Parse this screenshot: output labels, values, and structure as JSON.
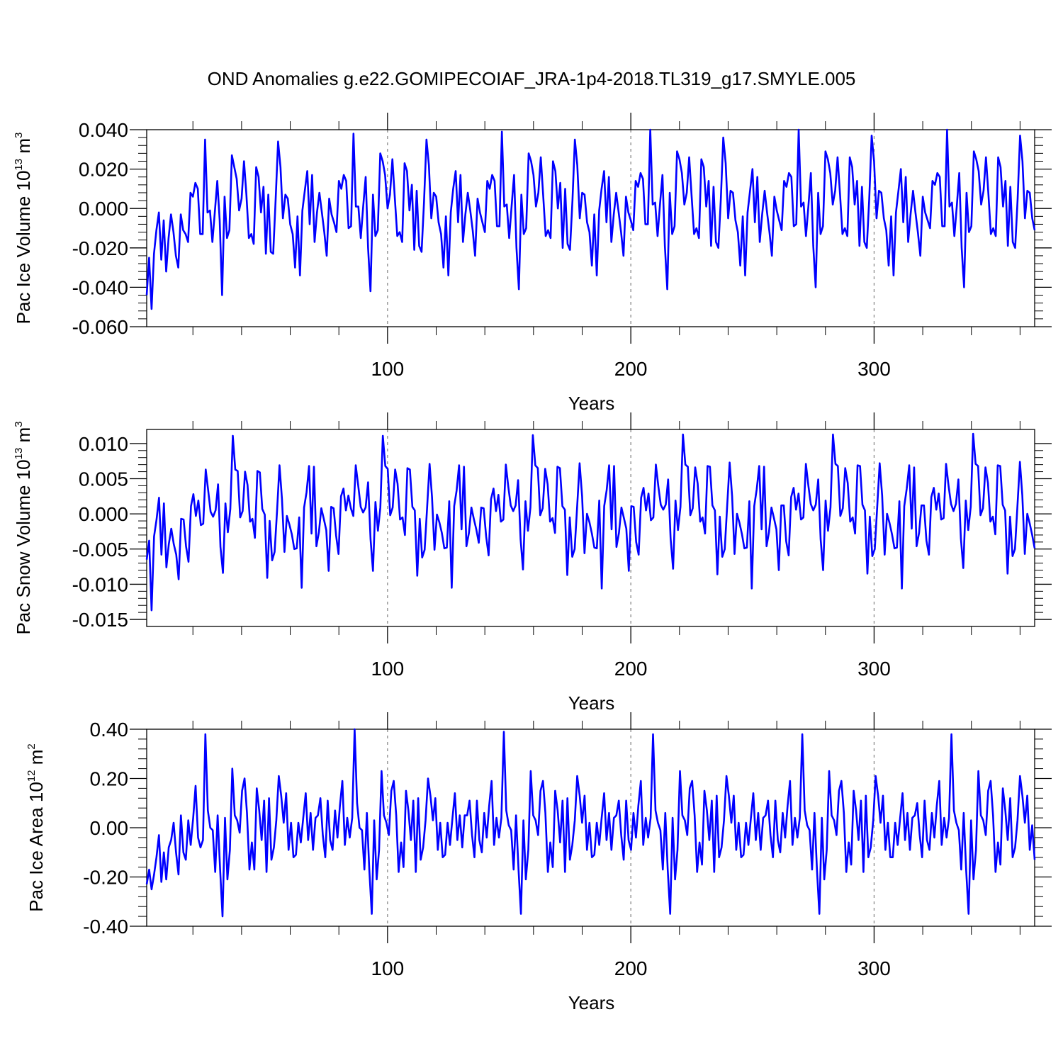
{
  "title": "OND Anomalies g.e22.GOMIPECOIAF_JRA-1p4-2018.TL319_g17.SMYLE.005",
  "colors": {
    "line": "#0000ff",
    "axis": "#000000",
    "refline": "#808080"
  },
  "chart_data": [
    {
      "type": "line",
      "ylabel": "Pac Ice Volume 10",
      "ylabel_sup": "13",
      "ylabel_unit": " m",
      "ylabel_unit_sup": "3",
      "xlabel": "Years",
      "xlim": [
        1,
        366
      ],
      "ylim": [
        -0.06,
        0.04
      ],
      "yticks": [
        -0.06,
        -0.04,
        -0.02,
        0.0,
        0.02,
        0.04
      ],
      "ytick_labels": [
        "-0.060",
        "-0.040",
        "-0.020",
        "0.000",
        "0.020",
        "0.040"
      ],
      "xticks": [
        100,
        200,
        300
      ],
      "xtick_labels": [
        "100",
        "200",
        "300"
      ],
      "reflines": [
        100,
        200,
        300
      ],
      "values": [
        -0.044,
        -0.025,
        -0.051,
        -0.023,
        -0.011,
        -0.002,
        -0.026,
        -0.006,
        -0.032,
        -0.015,
        -0.003,
        -0.012,
        -0.024,
        -0.03,
        -0.003,
        -0.011,
        -0.013,
        -0.017,
        0.008,
        0.006,
        0.013,
        0.01,
        -0.013,
        -0.013,
        0.035,
        -0.002,
        -0.001,
        -0.017,
        -0.002,
        0.014,
        -0.006,
        -0.044,
        0.006,
        -0.015,
        -0.011,
        0.027,
        0.021,
        0.015,
        -0.001,
        0.005,
        0.024,
        0.007,
        -0.015,
        -0.013,
        -0.018,
        0.021,
        0.016,
        -0.002,
        0.011,
        -0.023,
        0.007,
        -0.022,
        -0.023,
        0.004,
        0.034,
        0.021,
        -0.005,
        0.007,
        0.005,
        -0.008,
        -0.013,
        -0.03,
        -0.004,
        -0.034,
        -0.001,
        0.009,
        0.019,
        -0.008,
        0.017,
        -0.017,
        -0.002,
        0.008,
        -0.002,
        -0.012,
        -0.024,
        0.005,
        -0.003,
        -0.007,
        -0.012,
        0.014,
        0.01,
        0.017,
        0.014,
        -0.01,
        -0.009,
        0.038,
        0.001,
        0.001,
        -0.015,
        0.001,
        0.016,
        -0.02,
        -0.042,
        0.007,
        -0.014,
        -0.011,
        0.028,
        0.024,
        0.017,
        0.0,
        0.007,
        0.025,
        0.005,
        -0.014,
        -0.012,
        -0.017,
        0.023,
        0.019,
        -0.001,
        0.012,
        -0.021,
        0.009,
        -0.019,
        -0.022,
        0.003,
        0.035,
        0.022,
        -0.005,
        0.008,
        0.006,
        -0.007,
        -0.013,
        -0.03,
        -0.004,
        -0.034,
        -0.002,
        0.01,
        0.019,
        -0.007,
        0.017,
        -0.017,
        -0.003,
        0.008,
        -0.001,
        -0.011,
        -0.024,
        0.005,
        -0.002,
        -0.007,
        -0.012,
        0.014,
        0.01,
        0.017,
        0.014,
        -0.009,
        -0.009,
        0.039,
        0.001,
        0.002,
        -0.015,
        0.001,
        0.017,
        -0.02,
        -0.041,
        0.007,
        -0.013,
        -0.01,
        0.028,
        0.024,
        0.017,
        0.001,
        0.008,
        0.026,
        0.006,
        -0.014,
        -0.011,
        -0.015,
        0.024,
        0.019,
        0.0,
        0.013,
        -0.02,
        0.01,
        -0.018,
        -0.021,
        0.004,
        0.035,
        0.022,
        -0.005,
        0.008,
        0.007,
        -0.007,
        -0.012,
        -0.029,
        -0.003,
        -0.034,
        -0.001,
        0.01,
        0.019,
        -0.007,
        0.016,
        -0.017,
        -0.003,
        0.008,
        -0.002,
        -0.012,
        -0.024,
        0.006,
        -0.002,
        -0.006,
        -0.011,
        0.014,
        0.011,
        0.018,
        0.015,
        -0.008,
        -0.008,
        0.04,
        0.002,
        0.003,
        -0.014,
        0.002,
        0.017,
        -0.019,
        -0.041,
        0.008,
        -0.013,
        -0.009,
        0.029,
        0.025,
        0.018,
        0.002,
        0.008,
        0.026,
        0.006,
        -0.013,
        -0.01,
        -0.015,
        0.025,
        0.021,
        0.001,
        0.014,
        -0.019,
        0.011,
        -0.017,
        -0.02,
        0.005,
        0.036,
        0.023,
        -0.005,
        0.009,
        0.008,
        -0.006,
        -0.012,
        -0.029,
        -0.004,
        -0.034,
        -0.002,
        0.009,
        0.02,
        -0.007,
        0.016,
        -0.017,
        -0.003,
        0.009,
        -0.002,
        -0.012,
        -0.024,
        0.006,
        -0.001,
        -0.006,
        -0.011,
        0.014,
        0.011,
        0.018,
        0.016,
        -0.009,
        -0.008,
        0.04,
        0.001,
        0.003,
        -0.014,
        0.001,
        0.018,
        -0.019,
        -0.04,
        0.008,
        -0.013,
        -0.009,
        0.029,
        0.025,
        0.018,
        0.002,
        0.009,
        0.026,
        0.007,
        -0.013,
        -0.01,
        -0.014,
        0.026,
        0.021,
        0.002,
        0.014,
        -0.019,
        0.011,
        -0.017,
        -0.02,
        0.005,
        0.037,
        0.024,
        -0.005,
        0.009,
        0.008,
        -0.005,
        -0.011,
        -0.029,
        -0.004,
        -0.034,
        -0.002,
        0.009,
        0.02,
        -0.007,
        0.016,
        -0.017,
        -0.003,
        0.009,
        -0.002,
        -0.012,
        -0.024,
        0.006,
        -0.002,
        -0.006,
        -0.01,
        0.014,
        0.012,
        0.018,
        0.016,
        -0.009,
        -0.009,
        0.04,
        0.001,
        0.003,
        -0.014,
        0.001,
        0.018,
        -0.02,
        -0.04,
        0.008,
        -0.012,
        -0.009,
        0.029,
        0.025,
        0.019,
        0.002,
        0.009,
        0.026,
        0.007,
        -0.013,
        -0.01,
        -0.014,
        0.026,
        0.021,
        0.001,
        0.014,
        -0.019,
        0.011,
        -0.017,
        -0.02,
        0.005,
        0.037,
        0.024,
        -0.005,
        0.009,
        0.008,
        -0.005,
        -0.011
      ]
    },
    {
      "type": "line",
      "ylabel": "Pac Snow Volume 10",
      "ylabel_sup": "13",
      "ylabel_unit": " m",
      "ylabel_unit_sup": "3",
      "xlabel": "Years",
      "xlim": [
        1,
        366
      ],
      "ylim": [
        -0.016,
        0.012
      ],
      "yticks": [
        -0.015,
        -0.01,
        -0.005,
        0.0,
        0.005,
        0.01
      ],
      "ytick_labels": [
        "-0.015",
        "-0.010",
        "-0.005",
        "0.000",
        "0.005",
        "0.010"
      ],
      "xticks": [
        100,
        200,
        300
      ],
      "xtick_labels": [
        "100",
        "200",
        "300"
      ],
      "reflines": [
        100,
        200,
        300
      ],
      "values": [
        -0.0065,
        -0.0038,
        -0.0137,
        -0.0032,
        -0.0008,
        0.0023,
        -0.0058,
        0.0015,
        -0.0076,
        -0.0043,
        -0.0021,
        -0.0043,
        -0.0058,
        -0.0093,
        -0.0007,
        -0.0008,
        -0.0046,
        -0.0068,
        0.0011,
        0.0028,
        -0.0003,
        0.0019,
        -0.0016,
        -0.0014,
        0.0063,
        0.0033,
        0.0003,
        -0.0004,
        0.0005,
        0.0042,
        -0.0047,
        -0.0084,
        0.0015,
        -0.0026,
        0.0007,
        0.0111,
        0.0063,
        0.0061,
        -0.0005,
        0.0004,
        0.006,
        0.0041,
        -0.0011,
        -0.0007,
        -0.0034,
        0.0061,
        0.0059,
        0.0007,
        -0.0001,
        -0.0091,
        -0.001,
        -0.0066,
        -0.0054,
        0.0005,
        0.0069,
        0.0021,
        -0.0054,
        -0.0003,
        -0.0015,
        -0.0029,
        -0.005,
        -0.0049,
        -0.0005,
        -0.0105,
        0.0009,
        0.0031,
        0.0068,
        -0.0028,
        0.0067,
        -0.0046,
        -0.0026,
        0.0008,
        -0.0007,
        -0.0023,
        -0.0081,
        0.001,
        0.0008,
        -0.0031,
        -0.0057,
        0.0025,
        0.0036,
        0.0005,
        0.0026,
        0.0008,
        -0.0003,
        0.0069,
        0.004,
        0.001,
        0.0002,
        0.0009,
        0.0045,
        -0.0036,
        -0.0081,
        0.0017,
        -0.0024,
        0.0009,
        0.0111,
        0.0068,
        0.0064,
        -0.0002,
        0.0009,
        0.0063,
        0.0043,
        -0.0008,
        -0.0005,
        -0.003,
        0.0065,
        0.0063,
        0.001,
        0.0005,
        -0.0088,
        -0.0007,
        -0.0062,
        -0.0051,
        0.0009,
        0.0071,
        0.0024,
        -0.0051,
        -0.0001,
        -0.0012,
        -0.0027,
        -0.0049,
        -0.0048,
        0.0018,
        -0.0105,
        0.0011,
        0.0033,
        0.0069,
        -0.0022,
        0.0067,
        -0.0046,
        -0.0027,
        0.0009,
        -0.0007,
        -0.0022,
        -0.0041,
        0.0009,
        0.0008,
        -0.0032,
        -0.0059,
        0.0021,
        0.0036,
        0.0004,
        0.0027,
        -0.0011,
        -0.0008,
        0.007,
        0.0039,
        0.0012,
        0.0004,
        0.0012,
        0.0048,
        -0.0036,
        -0.0079,
        0.0018,
        -0.0024,
        0.0009,
        0.0112,
        0.0069,
        0.0065,
        -0.0002,
        0.0008,
        0.0064,
        0.0042,
        -0.0011,
        -0.0006,
        -0.0027,
        0.0067,
        0.0065,
        0.0011,
        0.0006,
        -0.0087,
        -0.0005,
        -0.0061,
        -0.005,
        0.001,
        0.0072,
        0.0025,
        -0.0056,
        0.0,
        -0.0012,
        -0.0028,
        -0.0048,
        -0.0049,
        0.0019,
        -0.0106,
        0.0011,
        0.0034,
        0.0069,
        -0.0022,
        0.0068,
        -0.0047,
        -0.0027,
        0.0009,
        -0.0006,
        -0.0021,
        -0.0081,
        0.0011,
        0.001,
        -0.004,
        -0.0058,
        0.0023,
        0.0037,
        0.0005,
        0.0029,
        -0.0009,
        -0.0005,
        0.007,
        0.0039,
        0.0013,
        0.0006,
        0.0013,
        0.0049,
        -0.0035,
        -0.0078,
        0.0019,
        -0.0023,
        0.001,
        0.0113,
        0.007,
        0.0067,
        -0.0002,
        0.0008,
        0.0066,
        0.0043,
        -0.0011,
        -0.0005,
        -0.0028,
        0.0068,
        0.0067,
        0.0012,
        0.0005,
        -0.0086,
        -0.0004,
        -0.0061,
        -0.005,
        0.0011,
        0.0073,
        0.0025,
        -0.0057,
        0.0,
        -0.0013,
        -0.0029,
        -0.0049,
        -0.0048,
        0.0018,
        -0.0106,
        0.0011,
        0.0035,
        0.0068,
        -0.0022,
        0.0067,
        -0.0046,
        -0.0026,
        0.0009,
        -0.0006,
        -0.0022,
        -0.008,
        0.0012,
        0.0012,
        -0.0039,
        -0.0059,
        0.0024,
        0.0037,
        0.0006,
        0.0029,
        -0.0008,
        -0.0005,
        0.0071,
        0.004,
        0.0014,
        0.0005,
        0.0013,
        0.0049,
        -0.0036,
        -0.008,
        0.0019,
        -0.0024,
        0.0009,
        0.0113,
        0.0071,
        0.0068,
        -0.0003,
        0.0008,
        0.0065,
        0.0044,
        -0.0011,
        -0.0005,
        -0.0028,
        0.0069,
        0.0068,
        0.0013,
        0.0005,
        -0.0085,
        -0.0004,
        -0.006,
        -0.005,
        0.0011,
        0.0072,
        0.0026,
        -0.0058,
        0.0,
        -0.0013,
        -0.0029,
        -0.0049,
        -0.0048,
        0.0018,
        -0.0106,
        0.0011,
        0.0036,
        0.0069,
        -0.0021,
        0.0066,
        -0.0046,
        -0.0027,
        0.0012,
        0.0012,
        -0.0038,
        -0.0058,
        0.0024,
        0.0037,
        0.0006,
        0.0029,
        -0.0008,
        -0.0006,
        0.0071,
        0.004,
        0.0014,
        0.0004,
        0.0014,
        0.0049,
        -0.0035,
        -0.0077,
        0.0019,
        -0.0023,
        0.001,
        0.0114,
        0.0071,
        0.0068,
        -0.0002,
        0.0008,
        0.0066,
        0.0044,
        -0.0011,
        -0.0004,
        -0.0029,
        0.0069,
        0.0068,
        0.0013,
        0.0005,
        -0.0085,
        -0.0004,
        -0.006,
        -0.005,
        0.0011,
        0.0074,
        0.0026,
        -0.0057,
        0.0,
        -0.0014,
        -0.003,
        -0.0049
      ]
    },
    {
      "type": "line",
      "ylabel": "Pac Ice Area 10",
      "ylabel_sup": "12",
      "ylabel_unit": " m",
      "ylabel_unit_sup": "2",
      "xlabel": "Years",
      "xlim": [
        1,
        366
      ],
      "ylim": [
        -0.4,
        0.4
      ],
      "yticks": [
        -0.4,
        -0.2,
        0.0,
        0.2,
        0.4
      ],
      "ytick_labels": [
        "-0.40",
        "-0.20",
        "0.00",
        "0.20",
        "0.40"
      ],
      "xticks": [
        100,
        200,
        300
      ],
      "xtick_labels": [
        "100",
        "200",
        "300"
      ],
      "reflines": [
        100,
        200,
        300
      ],
      "values": [
        -0.23,
        -0.17,
        -0.25,
        -0.19,
        -0.12,
        -0.03,
        -0.22,
        -0.1,
        -0.21,
        -0.08,
        -0.05,
        0.02,
        -0.1,
        -0.19,
        0.05,
        -0.1,
        -0.13,
        0.03,
        -0.07,
        0.04,
        0.17,
        -0.04,
        -0.08,
        -0.05,
        0.38,
        0.07,
        0.0,
        -0.01,
        -0.18,
        0.05,
        -0.17,
        -0.36,
        0.04,
        -0.21,
        -0.09,
        0.24,
        0.05,
        0.03,
        -0.02,
        0.15,
        0.2,
        0.06,
        -0.17,
        -0.06,
        -0.17,
        0.16,
        0.07,
        -0.05,
        0.11,
        -0.18,
        0.12,
        -0.13,
        -0.08,
        0.03,
        0.21,
        0.13,
        0.02,
        0.14,
        -0.09,
        0.02,
        -0.12,
        -0.11,
        0.02,
        -0.06,
        0.04,
        0.14,
        -0.05,
        0.06,
        -0.09,
        0.04,
        0.05,
        0.12,
        -0.03,
        -0.12,
        0.11,
        -0.05,
        -0.09,
        0.07,
        -0.04,
        0.09,
        0.19,
        -0.07,
        0.04,
        -0.04,
        0.04,
        0.4,
        0.1,
        0.0,
        -0.01,
        -0.17,
        0.06,
        -0.17,
        -0.35,
        0.03,
        -0.21,
        -0.09,
        0.23,
        0.05,
        0.02,
        -0.03,
        0.15,
        0.19,
        0.05,
        -0.18,
        -0.06,
        -0.16,
        0.15,
        0.07,
        -0.05,
        0.11,
        -0.18,
        0.12,
        -0.13,
        -0.08,
        0.03,
        0.2,
        0.13,
        0.03,
        0.12,
        -0.09,
        0.02,
        -0.12,
        -0.11,
        0.02,
        -0.07,
        0.04,
        0.14,
        -0.05,
        0.05,
        -0.08,
        0.05,
        0.05,
        0.11,
        -0.03,
        -0.12,
        0.11,
        -0.05,
        -0.1,
        0.06,
        -0.04,
        0.09,
        0.19,
        -0.07,
        0.04,
        -0.04,
        0.04,
        0.39,
        0.07,
        0.01,
        -0.01,
        -0.17,
        0.05,
        -0.17,
        -0.35,
        0.03,
        -0.21,
        -0.09,
        0.23,
        0.05,
        0.03,
        -0.03,
        0.15,
        0.19,
        0.06,
        -0.18,
        -0.06,
        -0.16,
        0.15,
        0.07,
        -0.06,
        0.11,
        -0.18,
        0.12,
        -0.13,
        -0.07,
        0.03,
        0.21,
        0.13,
        0.02,
        0.13,
        -0.09,
        0.02,
        -0.12,
        -0.11,
        0.02,
        -0.07,
        0.04,
        0.14,
        -0.05,
        0.06,
        -0.09,
        0.04,
        0.05,
        0.11,
        -0.03,
        -0.13,
        0.11,
        -0.05,
        -0.09,
        0.06,
        -0.04,
        0.09,
        0.19,
        -0.07,
        0.04,
        -0.04,
        0.04,
        0.38,
        0.07,
        0.02,
        -0.01,
        -0.17,
        0.06,
        -0.17,
        -0.35,
        0.04,
        -0.21,
        -0.09,
        0.23,
        0.05,
        0.03,
        -0.03,
        0.16,
        0.19,
        0.05,
        -0.18,
        -0.06,
        -0.15,
        0.15,
        0.07,
        -0.05,
        0.11,
        -0.18,
        0.13,
        -0.12,
        -0.08,
        0.03,
        0.21,
        0.13,
        0.02,
        0.13,
        -0.09,
        0.02,
        -0.12,
        -0.11,
        0.02,
        -0.07,
        0.04,
        0.14,
        -0.05,
        0.06,
        -0.09,
        0.04,
        0.05,
        0.11,
        -0.03,
        -0.12,
        0.11,
        -0.05,
        -0.1,
        0.06,
        -0.04,
        0.09,
        0.19,
        -0.07,
        0.04,
        -0.04,
        0.04,
        0.38,
        0.07,
        0.01,
        -0.01,
        -0.17,
        0.06,
        -0.17,
        -0.35,
        0.04,
        -0.21,
        -0.09,
        0.23,
        0.05,
        0.03,
        -0.03,
        0.15,
        0.19,
        0.06,
        -0.18,
        -0.06,
        -0.15,
        0.15,
        0.07,
        -0.05,
        0.11,
        -0.18,
        0.13,
        -0.12,
        -0.08,
        0.03,
        0.21,
        0.13,
        0.02,
        0.13,
        -0.09,
        0.02,
        -0.12,
        -0.12,
        0.02,
        -0.07,
        0.04,
        0.14,
        -0.05,
        0.06,
        -0.09,
        0.04,
        0.05,
        0.1,
        -0.03,
        -0.12,
        0.11,
        -0.05,
        -0.09,
        0.06,
        -0.04,
        0.09,
        0.19,
        -0.07,
        0.04,
        -0.04,
        0.04,
        0.38,
        0.07,
        0.02,
        -0.01,
        -0.17,
        0.06,
        -0.17,
        -0.35,
        0.03,
        -0.21,
        -0.09,
        0.23,
        0.05,
        0.03,
        -0.03,
        0.15,
        0.19,
        0.05,
        -0.18,
        -0.06,
        -0.15,
        0.16,
        0.07,
        -0.05,
        0.12,
        -0.12,
        -0.08,
        0.03,
        0.21,
        0.13,
        0.02,
        0.13,
        -0.09,
        0.01,
        -0.13
      ]
    }
  ]
}
